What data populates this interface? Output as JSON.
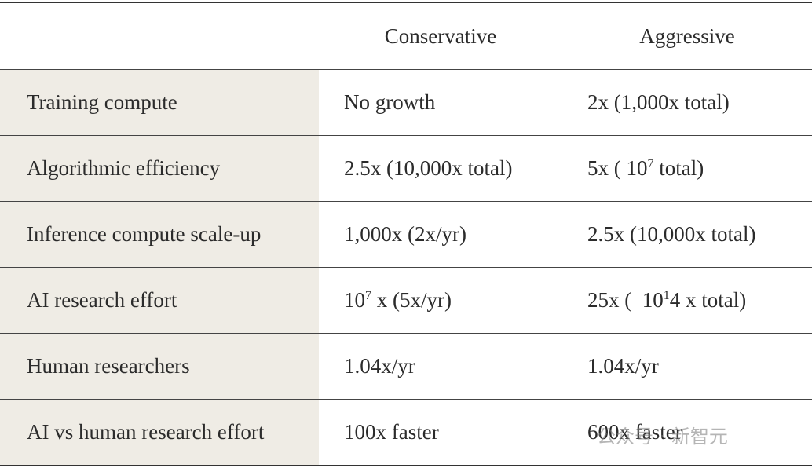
{
  "table": {
    "header": [
      "",
      "Conservative",
      "Aggressive"
    ],
    "rows": [
      [
        "Training compute",
        "No growth",
        "2x (1,000x total)"
      ],
      [
        "Algorithmic efficiency",
        "2.5x (10,000x total)",
        {
          "before": "5x ( 10",
          "sup": "7",
          "after": " total)"
        }
      ],
      [
        "Inference compute scale-up",
        "1,000x (2x/yr)",
        "2.5x (10,000x total)"
      ],
      [
        "AI research effort",
        {
          "before": "10",
          "sup": "7",
          "after": " x (5x/yr)"
        },
        {
          "before": "25x (  10",
          "sup": "1",
          "after": "4 x total)"
        }
      ],
      [
        "Human researchers",
        "1.04x/yr",
        "1.04x/yr"
      ],
      [
        "AI vs human research effort",
        "100x faster",
        "600x faster"
      ]
    ]
  },
  "watermark": "公众号 · 新智元"
}
